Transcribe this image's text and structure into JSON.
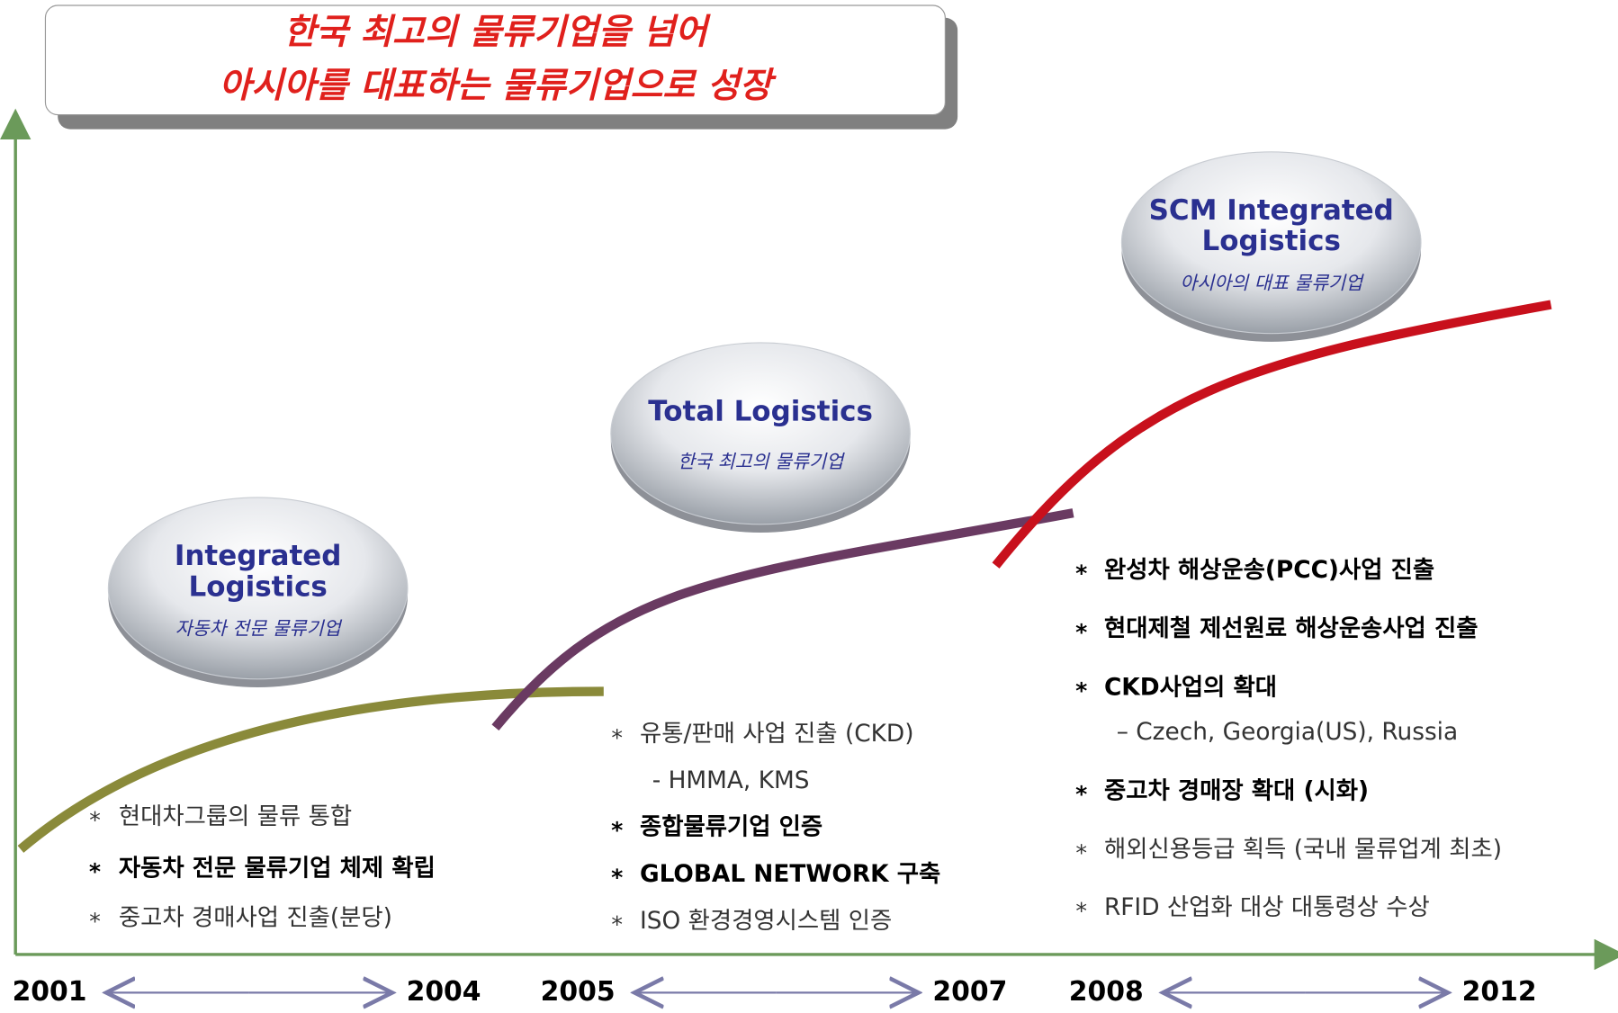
{
  "title": {
    "lines": [
      "한국 최고의 물류기업을 넘어",
      "아시아를 대표하는 물류기업으로 성장"
    ]
  },
  "bullet": "*",
  "stages": [
    {
      "name": [
        "Integrated",
        "Logistics"
      ],
      "subtitle": "자동차 전문 물류기업",
      "items": [
        {
          "text": "현대차그룹의 물류 통합"
        },
        {
          "text": "자동차 전문 물류기업 체제 확립",
          "bold": true
        },
        {
          "text": "중고차 경매사업 진출(분당)"
        }
      ]
    },
    {
      "name": [
        "Total Logistics"
      ],
      "subtitle": "한국 최고의 물류기업",
      "items": [
        {
          "text": "유통/판매 사업 진출 (CKD)"
        },
        {
          "text": "- HMMA, KMS",
          "sub": true
        },
        {
          "text": "종합물류기업 인증",
          "bold": true
        },
        {
          "text": "GLOBAL NETWORK 구축",
          "bold": true
        },
        {
          "text": "ISO 환경경영시스템 인증"
        }
      ]
    },
    {
      "name": [
        "SCM Integrated",
        "Logistics"
      ],
      "subtitle": "아시아의 대표 물류기업",
      "items": [
        {
          "text": "완성차 해상운송(PCC)사업 진출",
          "bold": true
        },
        {
          "text": "현대제철 제선원료 해상운송사업 진출",
          "bold": true
        },
        {
          "text": "CKD사업의 확대",
          "bold": true
        },
        {
          "text": "– Czech, Georgia(US), Russia",
          "sub": true
        },
        {
          "text": "중고차 경매장 확대 (시화)",
          "bold": true
        },
        {
          "text": "해외신용등급 획득 (국내 물류업계 최초)"
        },
        {
          "text": "RFID 산업화 대상 대통령상 수상"
        }
      ]
    }
  ],
  "years": [
    "2001",
    "2004",
    "2005",
    "2007",
    "2008",
    "2012"
  ]
}
